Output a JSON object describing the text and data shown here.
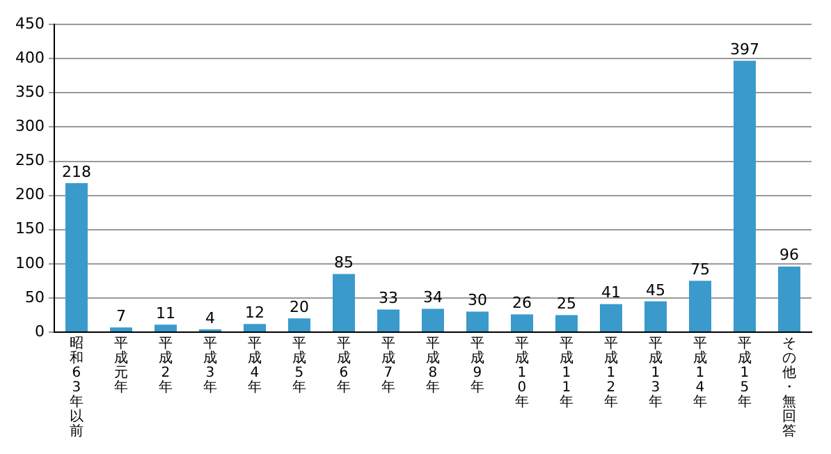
{
  "chart_data": {
    "type": "bar",
    "categories": [
      "昭和63年以前",
      "平成元年",
      "平成2年",
      "平成3年",
      "平成4年",
      "平成5年",
      "平成6年",
      "平成7年",
      "平成8年",
      "平成9年",
      "平成10年",
      "平成11年",
      "平成12年",
      "平成13年",
      "平成14年",
      "平成15年",
      "その他・無回答"
    ],
    "values": [
      218,
      7,
      11,
      4,
      12,
      20,
      85,
      33,
      34,
      30,
      26,
      25,
      41,
      45,
      75,
      397,
      96
    ],
    "color": "#3a9acb",
    "ylim": [
      0,
      450
    ],
    "yticks": [
      0,
      50,
      100,
      150,
      200,
      250,
      300,
      350,
      400,
      450
    ],
    "grid": "y",
    "data_labels": true,
    "legend": false
  }
}
